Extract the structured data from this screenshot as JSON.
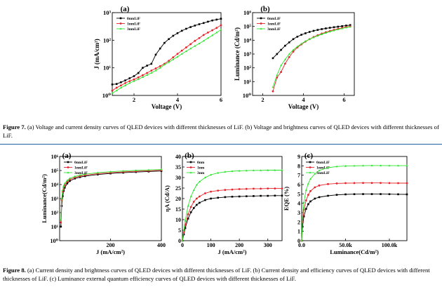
{
  "figure7": {
    "caption_label": "Figure 7.",
    "caption_text": "(a) Voltage and current density curves of QLED devices with different thicknesses of LiF. (b) Voltage and brightness curves of QLED devices with different thicknesses of LiF."
  },
  "figure8": {
    "caption_label": "Figure 8.",
    "caption_text": "(a) Current density and brightness curves of QLED devices with different thicknesses of LiF. (b) Current density and efficiency curves of QLED devices with different thicknesses of LiF. (c) Luminance external quantum efficiency curves of QLED devices with different thicknesses of LiF."
  },
  "series_colors": [
    "#000000",
    "#e8242a",
    "#2ce52c"
  ],
  "chart_data": [
    {
      "id": "fig7a",
      "panel": "(a)",
      "type": "line",
      "xlabel": "Voltage (V)",
      "ylabel": "J (mA/cm²)",
      "xlim": [
        1,
        6
      ],
      "ylim": [
        1,
        1000
      ],
      "yscale": "log",
      "xticks": [
        2,
        4,
        6
      ],
      "yticks": [
        1,
        10,
        100,
        1000
      ],
      "yticklabels": [
        "10⁰",
        "10¹",
        "10²",
        "10³"
      ],
      "legend_position": "top-left",
      "series": [
        {
          "name": "0nmLiF",
          "x": [
            1.0,
            1.2,
            1.4,
            1.6,
            1.8,
            2.0,
            2.2,
            2.4,
            2.6,
            2.8,
            3.0,
            3.2,
            3.4,
            3.6,
            3.8,
            4.0,
            4.2,
            4.4,
            4.6,
            4.8,
            5.0,
            5.2,
            5.4,
            5.6,
            5.8,
            6.0
          ],
          "y": [
            2.5,
            2.6,
            3.0,
            3.5,
            4.2,
            5.0,
            6.5,
            10,
            12,
            14,
            30,
            50,
            80,
            110,
            145,
            180,
            220,
            260,
            300,
            340,
            380,
            420,
            470,
            520,
            560,
            600
          ]
        },
        {
          "name": "1nmLiF",
          "x": [
            1.0,
            1.2,
            1.4,
            1.6,
            1.8,
            2.0,
            2.2,
            2.4,
            2.6,
            2.8,
            3.0,
            3.2,
            3.4,
            3.6,
            3.8,
            4.0,
            4.2,
            4.4,
            4.6,
            4.8,
            5.0,
            5.2,
            5.4,
            5.6,
            5.8,
            6.0
          ],
          "y": [
            1.5,
            1.9,
            2.3,
            2.8,
            3.3,
            3.8,
            4.5,
            5.4,
            6.5,
            8,
            9.5,
            11.5,
            14,
            18,
            24,
            32,
            42,
            55,
            72,
            95,
            120,
            155,
            190,
            230,
            280,
            350
          ]
        },
        {
          "name": "3nmLiF",
          "x": [
            1.0,
            1.2,
            1.4,
            1.6,
            1.8,
            2.0,
            2.2,
            2.4,
            2.6,
            2.8,
            3.0,
            3.2,
            3.4,
            3.6,
            3.8,
            4.0,
            4.2,
            4.4,
            4.6,
            4.8,
            5.0,
            5.2,
            5.4,
            5.6,
            5.8,
            6.0
          ],
          "y": [
            1.2,
            1.5,
            1.9,
            2.3,
            2.8,
            3.3,
            3.9,
            4.6,
            5.5,
            6.6,
            8,
            10,
            13,
            16,
            20,
            25,
            32,
            40,
            50,
            62,
            76,
            95,
            120,
            150,
            190,
            240
          ]
        }
      ]
    },
    {
      "id": "fig7b",
      "panel": "(b)",
      "type": "line",
      "xlabel": "Voltage (V)",
      "ylabel": "Luminance (Cd/m²)",
      "xlim": [
        1.5,
        6.5
      ],
      "ylim": [
        1,
        1000000
      ],
      "yscale": "log",
      "xticks": [
        2,
        4,
        6
      ],
      "yticks": [
        1,
        10,
        100,
        1000,
        10000,
        100000,
        1000000
      ],
      "yticklabels": [
        "10⁰",
        "10¹",
        "10²",
        "10³",
        "10⁴",
        "10⁵",
        "10⁶"
      ],
      "legend_position": "top-left",
      "series": [
        {
          "name": "0nmLiF",
          "x": [
            2.5,
            2.7,
            2.9,
            3.1,
            3.3,
            3.5,
            3.7,
            3.9,
            4.1,
            4.3,
            4.5,
            4.7,
            4.9,
            5.1,
            5.3,
            5.5,
            5.7,
            5.9,
            6.1,
            6.3
          ],
          "y": [
            500,
            1000,
            2000,
            4000,
            7000,
            12000,
            18000,
            25000,
            32000,
            40000,
            48000,
            56000,
            64000,
            72000,
            80000,
            88000,
            96000,
            105000,
            115000,
            125000
          ]
        },
        {
          "name": "1nmLiF",
          "x": [
            2.5,
            2.7,
            2.9,
            3.1,
            3.3,
            3.5,
            3.7,
            3.9,
            4.1,
            4.3,
            4.5,
            4.7,
            4.9,
            5.1,
            5.3,
            5.5,
            5.7,
            5.9,
            6.1,
            6.3
          ],
          "y": [
            2,
            20,
            50,
            200,
            600,
            1500,
            3000,
            5000,
            8000,
            12000,
            17000,
            23000,
            30000,
            38000,
            47000,
            57000,
            67000,
            78000,
            90000,
            100000
          ]
        },
        {
          "name": "3nmLiF",
          "x": [
            2.5,
            2.7,
            2.9,
            3.1,
            3.3,
            3.5,
            3.7,
            3.9,
            4.1,
            4.3,
            4.5,
            4.7,
            4.9,
            5.1,
            5.3,
            5.5,
            5.7,
            5.9,
            6.1,
            6.3
          ],
          "y": [
            4,
            30,
            150,
            400,
            1000,
            2000,
            3500,
            5500,
            8500,
            12000,
            16000,
            21000,
            27000,
            34000,
            42000,
            51000,
            61000,
            72000,
            84000,
            95000
          ]
        }
      ]
    },
    {
      "id": "fig8a",
      "panel": "(a)",
      "type": "line",
      "xlabel": "J (mA/cm²)",
      "ylabel": "Luminance(Cd/m²)",
      "xlim": [
        0,
        400
      ],
      "ylim": [
        1,
        1000000
      ],
      "yscale": "log",
      "xticks": [
        200,
        400
      ],
      "yticks": [
        1,
        10,
        100,
        1000,
        10000,
        100000,
        1000000
      ],
      "yticklabels": [
        "10⁰",
        "10¹",
        "10²",
        "10³",
        "10⁴",
        "10⁵",
        "10⁶"
      ],
      "legend_position": "top-left",
      "series": [
        {
          "name": "0nmLiF",
          "x": [
            5,
            8,
            12,
            16,
            20,
            30,
            40,
            60,
            80,
            100,
            150,
            200,
            250,
            300,
            350,
            400
          ],
          "y": [
            10,
            300,
            1500,
            3500,
            6000,
            12000,
            18000,
            27000,
            34000,
            40000,
            52000,
            62000,
            70000,
            78000,
            85000,
            92000
          ]
        },
        {
          "name": "1nmLiF",
          "x": [
            5,
            8,
            12,
            16,
            20,
            30,
            40,
            60,
            80,
            100,
            150,
            200,
            250,
            300,
            350,
            400
          ],
          "y": [
            20,
            800,
            3000,
            6000,
            9000,
            16000,
            23000,
            32000,
            40000,
            47000,
            60000,
            70000,
            80000,
            88000,
            96000,
            104000
          ]
        },
        {
          "name": "3nmLiF",
          "x": [
            5,
            8,
            12,
            16,
            20,
            30,
            40,
            60,
            80,
            100,
            150,
            200,
            250,
            300,
            350,
            400
          ],
          "y": [
            30,
            1000,
            4000,
            8000,
            12000,
            20000,
            28000,
            38000,
            47000,
            55000,
            70000,
            82000,
            92000,
            102000,
            110000,
            118000
          ]
        }
      ]
    },
    {
      "id": "fig8b",
      "panel": "(b)",
      "type": "line",
      "xlabel": "J (mA/cm²)",
      "ylabel": "ηA (Cd/A)",
      "xlim": [
        0,
        350
      ],
      "ylim": [
        0,
        40
      ],
      "yscale": "linear",
      "xticks": [
        0,
        100,
        200,
        300
      ],
      "yticks": [
        0,
        5,
        10,
        15,
        20,
        25,
        30,
        35,
        40
      ],
      "legend_position": "top-left",
      "series": [
        {
          "name": "0nm",
          "x": [
            0,
            5,
            10,
            20,
            30,
            40,
            50,
            60,
            80,
            100,
            125,
            150,
            175,
            200,
            225,
            250,
            275,
            300,
            325,
            350
          ],
          "y": [
            0,
            3,
            6,
            10.5,
            13.5,
            15.5,
            17,
            18,
            19.3,
            20,
            20.4,
            20.7,
            20.9,
            21,
            21.1,
            21.2,
            21.3,
            21.3,
            21.4,
            21.4
          ]
        },
        {
          "name": "1nm",
          "x": [
            0,
            5,
            10,
            20,
            30,
            40,
            50,
            60,
            80,
            100,
            125,
            150,
            175,
            200,
            225,
            250,
            275,
            300,
            325,
            350
          ],
          "y": [
            0,
            4,
            7.5,
            12.5,
            16,
            18.5,
            20,
            21,
            22.5,
            23.3,
            23.8,
            24.1,
            24.3,
            24.5,
            24.6,
            24.7,
            24.7,
            24.8,
            24.8,
            24.8
          ]
        },
        {
          "name": "3nm",
          "x": [
            0,
            5,
            10,
            20,
            30,
            40,
            50,
            60,
            80,
            100,
            125,
            150,
            175,
            200,
            225,
            250,
            275,
            300,
            325,
            350
          ],
          "y": [
            0,
            5,
            9.5,
            16.5,
            21,
            24,
            26.5,
            28,
            30,
            31.3,
            32.2,
            32.7,
            33,
            33.2,
            33.3,
            33.4,
            33.4,
            33.5,
            33.5,
            33.5
          ]
        }
      ]
    },
    {
      "id": "fig8c",
      "panel": "(c)",
      "type": "line",
      "xlabel": "Luminance(Cd/m²)",
      "ylabel": "EQE (%)",
      "xlim": [
        0,
        120000
      ],
      "ylim": [
        0,
        9
      ],
      "yscale": "linear",
      "xticks": [
        0,
        50000,
        100000
      ],
      "xticklabels": [
        "0.0",
        "50.0k",
        "100.0k"
      ],
      "yticks": [
        0,
        1,
        2,
        3,
        4,
        5,
        6,
        7,
        8,
        9
      ],
      "legend_position": "top-left",
      "series": [
        {
          "name": "0nmLiF",
          "x": [
            0,
            1000,
            2500,
            5000,
            7500,
            10000,
            15000,
            20000,
            30000,
            40000,
            50000,
            60000,
            70000,
            80000,
            90000,
            100000,
            110000,
            120000
          ],
          "y": [
            0,
            1.5,
            2.6,
            3.4,
            3.9,
            4.2,
            4.5,
            4.65,
            4.8,
            4.9,
            4.95,
            4.97,
            4.98,
            4.98,
            4.98,
            4.97,
            4.96,
            4.95
          ]
        },
        {
          "name": "1nmLiF",
          "x": [
            0,
            1000,
            2500,
            5000,
            7500,
            10000,
            15000,
            20000,
            30000,
            40000,
            50000,
            60000,
            70000,
            80000,
            90000,
            100000,
            110000,
            120000
          ],
          "y": [
            0,
            2,
            3.3,
            4.3,
            4.9,
            5.3,
            5.7,
            5.9,
            6.05,
            6.12,
            6.15,
            6.16,
            6.17,
            6.17,
            6.17,
            6.16,
            6.15,
            6.15
          ]
        },
        {
          "name": "3nmLiF",
          "x": [
            0,
            1000,
            2500,
            5000,
            7500,
            10000,
            15000,
            20000,
            30000,
            40000,
            50000,
            60000,
            70000,
            80000,
            90000,
            100000,
            110000,
            120000
          ],
          "y": [
            0,
            2.5,
            4.1,
            5.4,
            6.1,
            6.6,
            7.15,
            7.5,
            7.8,
            7.93,
            7.98,
            8.0,
            8.02,
            8.03,
            8.03,
            8.02,
            8.02,
            8.02
          ]
        }
      ]
    }
  ]
}
